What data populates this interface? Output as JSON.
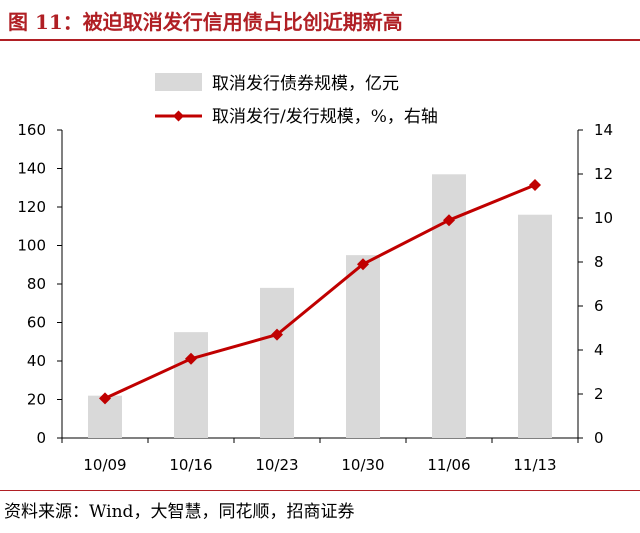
{
  "figure": {
    "title": "图 11：被迫取消发行信用债占比创近期新高",
    "source": "资料来源：Wind，大智慧，同花顺，招商证券"
  },
  "chart_data": {
    "type": "bar",
    "categories": [
      "10/09",
      "10/16",
      "10/23",
      "10/30",
      "11/06",
      "11/13"
    ],
    "series": [
      {
        "name": "取消发行债券规模，亿元",
        "type": "bar",
        "axis": "left",
        "values": [
          22,
          55,
          78,
          95,
          137,
          116
        ],
        "color": "#d9d9d9"
      },
      {
        "name": "取消发行/发行规模，%，右轴",
        "type": "line",
        "axis": "right",
        "values": [
          1.8,
          3.6,
          4.7,
          7.9,
          9.9,
          11.5
        ],
        "color": "#c00000"
      }
    ],
    "y_left": {
      "min": 0,
      "max": 160,
      "ticks": [
        0,
        20,
        40,
        60,
        80,
        100,
        120,
        140,
        160
      ]
    },
    "y_right": {
      "min": 0,
      "max": 14,
      "ticks": [
        0,
        2,
        4,
        6,
        8,
        10,
        12,
        14
      ]
    },
    "grid": false,
    "legend_position": "top-center"
  }
}
